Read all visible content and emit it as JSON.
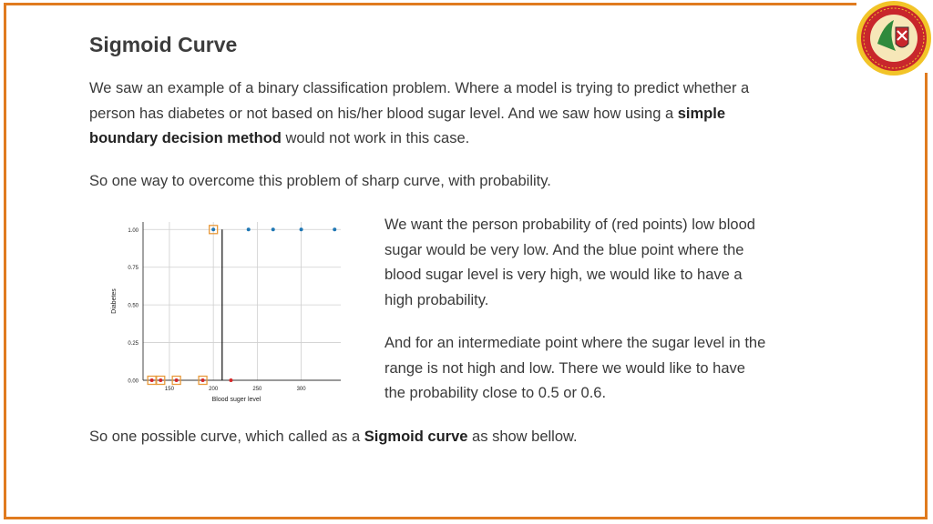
{
  "slide": {
    "title": "Sigmoid Curve",
    "p1": {
      "t1": "We saw an example of a binary classification problem. Where a model is trying to predict whether a person has diabetes or not based on his/her blood sugar level. And we saw how using a ",
      "b1": "simple boundary decision method",
      "t2": " would not work in this case."
    },
    "p2": "So one way to overcome this problem of sharp curve, with probability.",
    "p3": "We want the person probability of (red points) low blood sugar would be very low. And the blue point where the blood sugar level is very high, we would like to have a high probability.",
    "p4": "And for an intermediate point where the sugar level in the range is not high and low. There we would like to have the probability close to 0.5 or 0.6.",
    "p5": {
      "t1": "So one possible curve, which called as a ",
      "b1": "Sigmoid curve",
      "t2": " as show bellow."
    }
  },
  "colors": {
    "frame": "#e07b1f",
    "red_point": "#d62728",
    "blue_point": "#1f77b4",
    "highlight": "#e89a3c"
  },
  "logo": {
    "icon": "university-seal-logo"
  },
  "chart_data": {
    "type": "scatter",
    "xlabel": "Blood suger level",
    "ylabel": "Diabetes",
    "xlim": [
      120,
      345
    ],
    "ylim": [
      0,
      1.05
    ],
    "x_ticks": [
      150,
      200,
      250,
      300
    ],
    "y_ticks": [
      0.0,
      0.25,
      0.5,
      0.75,
      1.0
    ],
    "x_tick_labels": [
      "150",
      "200",
      "250",
      "300"
    ],
    "y_tick_labels": [
      "0.00",
      "0.25",
      "0.50",
      "0.75",
      "1.00"
    ],
    "grid": true,
    "series": [
      {
        "color": "red",
        "points": [
          [
            130,
            0
          ],
          [
            140,
            0
          ],
          [
            158,
            0
          ],
          [
            188,
            0
          ],
          [
            220,
            0
          ]
        ]
      },
      {
        "color": "blue",
        "points": [
          [
            200,
            1
          ],
          [
            240,
            1
          ],
          [
            268,
            1
          ],
          [
            300,
            1
          ],
          [
            338,
            1
          ]
        ]
      }
    ],
    "highlighted_points": [
      [
        130,
        0
      ],
      [
        140,
        0
      ],
      [
        158,
        0
      ],
      [
        188,
        0
      ],
      [
        200,
        1
      ]
    ],
    "decision_boundary_x": 210
  }
}
